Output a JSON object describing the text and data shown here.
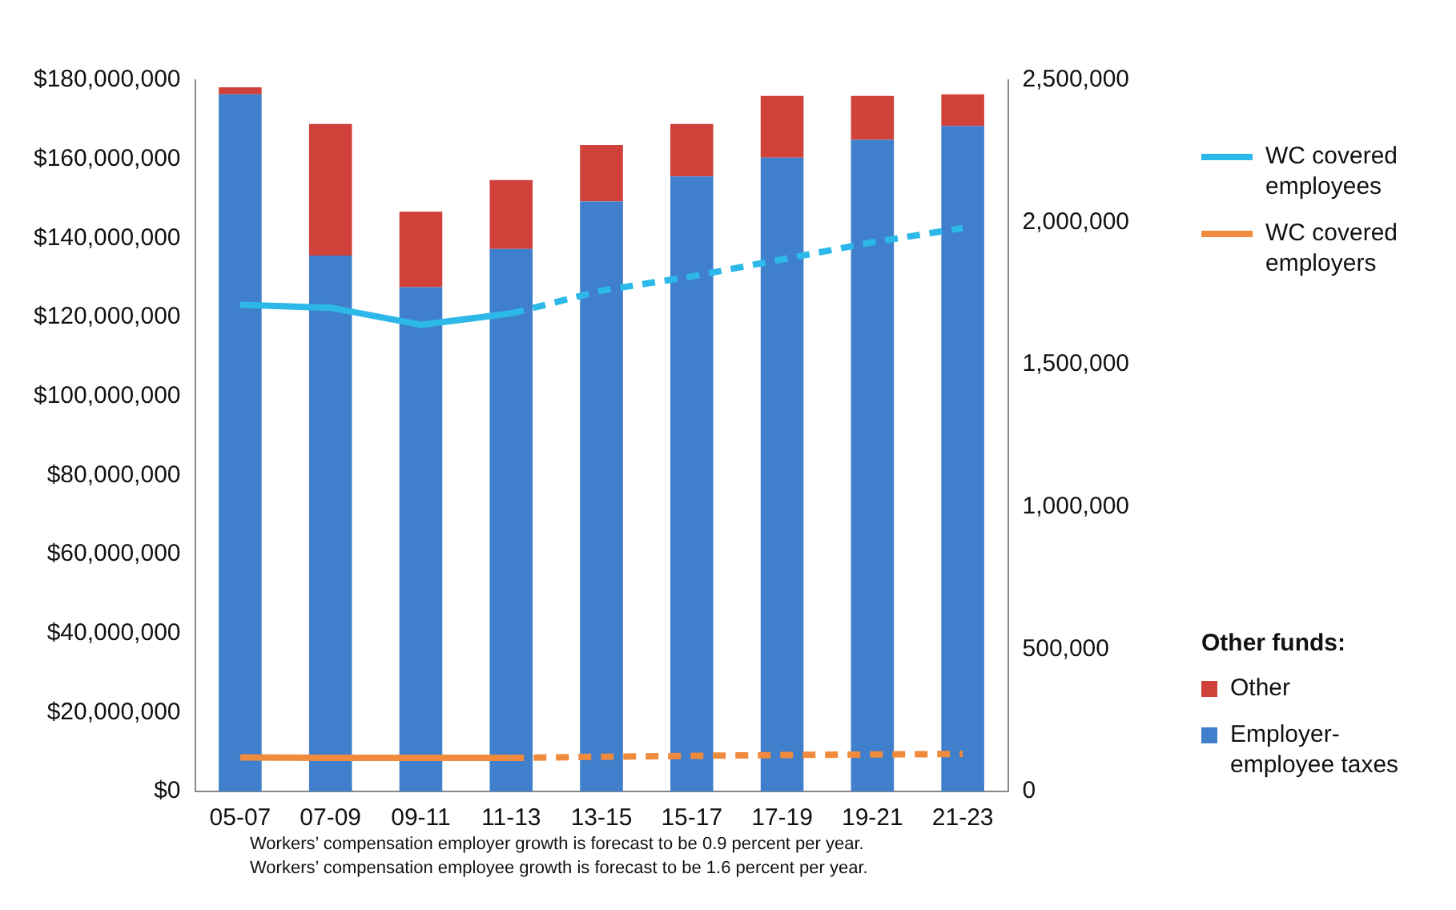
{
  "chart_data": {
    "type": "bar",
    "stacked": true,
    "categories": [
      "05-07",
      "07-09",
      "09-11",
      "11-13",
      "13-15",
      "15-17",
      "17-19",
      "19-21",
      "21-23"
    ],
    "series": [
      {
        "name": "Employer-employee taxes",
        "color": "#3f7fcc",
        "values": [
          176400000,
          135600000,
          127600000,
          137300000,
          149300000,
          155600000,
          160400000,
          164900000,
          168400000
        ]
      },
      {
        "name": "Other",
        "color": "#d0413a",
        "values": [
          1800000,
          33300000,
          19100000,
          17400000,
          14300000,
          13300000,
          15600000,
          11100000,
          8000000
        ]
      },
      {
        "name": "WC covered employees",
        "type": "line",
        "axis": "y2",
        "line_style": "solid",
        "color": "#2cb8e8",
        "values": [
          1710000,
          1700000,
          1640000,
          1680000,
          null,
          null,
          null,
          null,
          null
        ]
      },
      {
        "type": "line",
        "axis": "y2",
        "line_style": "dashed",
        "color": "#2cb8e8",
        "values": [
          null,
          null,
          null,
          1680000,
          1760000,
          1810000,
          1870000,
          1930000,
          1980000
        ]
      },
      {
        "name": "WC covered employers",
        "type": "line",
        "axis": "y2",
        "line_style": "solid",
        "color": "#f08a3c",
        "values": [
          120000,
          118000,
          118000,
          118000,
          null,
          null,
          null,
          null,
          null
        ]
      },
      {
        "type": "line",
        "axis": "y2",
        "line_style": "dashed",
        "color": "#f08a3c",
        "values": [
          null,
          null,
          null,
          118000,
          122000,
          125000,
          128000,
          130000,
          132000
        ]
      }
    ],
    "ylim": [
      0,
      180000000
    ],
    "yticks": [
      {
        "value": 0,
        "label": "$0"
      },
      {
        "value": 20000000,
        "label": "$20,000,000"
      },
      {
        "value": 40000000,
        "label": "$40,000,000"
      },
      {
        "value": 60000000,
        "label": "$60,000,000"
      },
      {
        "value": 80000000,
        "label": "$80,000,000"
      },
      {
        "value": 100000000,
        "label": "$100,000,000"
      },
      {
        "value": 120000000,
        "label": "$120,000,000"
      },
      {
        "value": 140000000,
        "label": "$140,000,000"
      },
      {
        "value": 160000000,
        "label": "$160,000,000"
      },
      {
        "value": 180000000,
        "label": "$180,000,000"
      }
    ],
    "y2lim": [
      0,
      2500000
    ],
    "y2ticks": [
      0,
      {
        "value": 500000,
        "label": "500,000"
      },
      {
        "value": 1000000,
        "label": "1,000,000"
      },
      {
        "value": 1500000,
        "label": "1,500,000"
      },
      {
        "value": 2000000,
        "label": "2,000,000"
      },
      {
        "value": 2500000,
        "label": "2,500,000"
      }
    ],
    "grid": false,
    "marker": "none",
    "legend": "right",
    "legend_title": "Other funds:",
    "annotations": [
      "Workers’ compensation employer growth is forecast to be 0.9 percent per year.",
      "Workers’ compensation employee growth is forecast to be 1.6 percent per year."
    ]
  }
}
